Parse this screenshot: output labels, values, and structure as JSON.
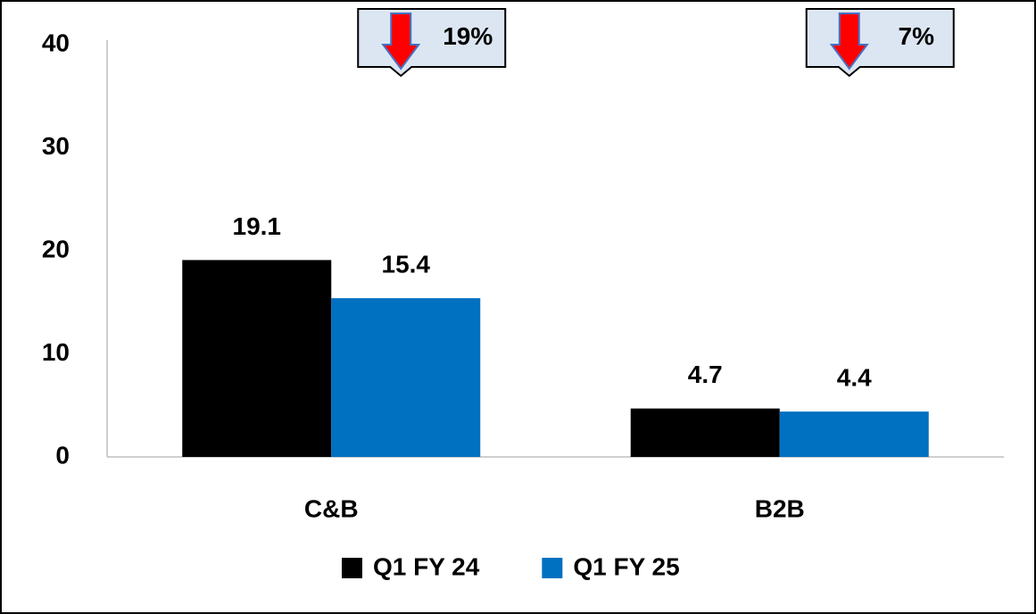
{
  "chart_data": {
    "type": "bar",
    "categories": [
      "C&B",
      "B2B"
    ],
    "series": [
      {
        "name": "Q1 FY 24",
        "color": "#000000",
        "values": [
          19.1,
          4.7
        ]
      },
      {
        "name": "Q1 FY 25",
        "color": "#0070c0",
        "values": [
          15.4,
          4.4
        ]
      }
    ],
    "ylim": [
      0,
      40
    ],
    "yticks": [
      0,
      10,
      20,
      30,
      40
    ],
    "annotations": [
      "19%",
      "7%"
    ],
    "grid": false
  }
}
